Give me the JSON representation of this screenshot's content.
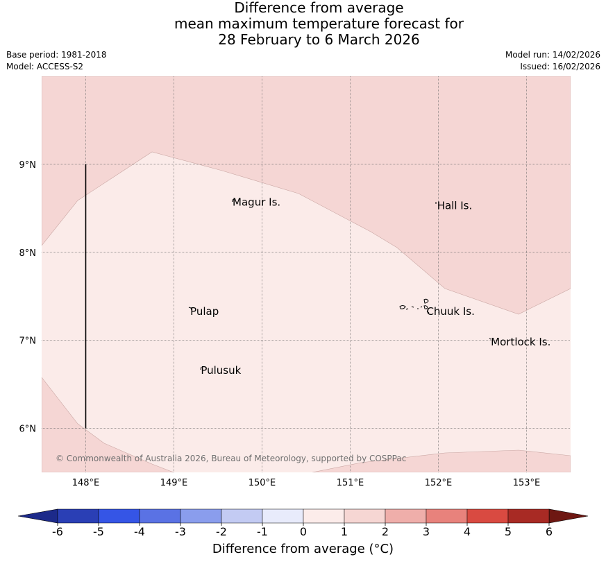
{
  "title": {
    "line1": "Difference from average",
    "line2": "mean maximum temperature forecast for",
    "line3": "28 February to 6 March 2026"
  },
  "meta": {
    "base_period": "Base period: 1981-2018",
    "model": "Model: ACCESS-S2",
    "model_run": "Model run: 14/02/2026",
    "issued": "Issued: 16/02/2026"
  },
  "map": {
    "lon_range": [
      147.5,
      153.5
    ],
    "lat_range": [
      5.5,
      10.0
    ],
    "lon_ticks": [
      148,
      149,
      150,
      151,
      152,
      153
    ],
    "lon_tick_labels": [
      "148°E",
      "149°E",
      "150°E",
      "151°E",
      "152°E",
      "153°E"
    ],
    "lat_ticks": [
      6,
      7,
      8,
      9
    ],
    "lat_tick_labels": [
      "6°N",
      "7°N",
      "8°N",
      "9°N"
    ],
    "grid": true,
    "colors": {
      "anomaly_0_1": "#fbebe9",
      "anomaly_1_2": "#f5d6d4",
      "boundary_line": "#000000"
    },
    "places": [
      {
        "name": "Magur Is.",
        "lon": 149.65,
        "lat": 8.57
      },
      {
        "name": "Hall Is.",
        "lon": 151.97,
        "lat": 8.53
      },
      {
        "name": "Pulap",
        "lon": 149.17,
        "lat": 7.33
      },
      {
        "name": "Chuuk Is.",
        "lon": 151.85,
        "lat": 7.33
      },
      {
        "name": "Pulusuk",
        "lon": 149.29,
        "lat": 6.66
      },
      {
        "name": "Mortlock Is.",
        "lon": 152.58,
        "lat": 6.98
      }
    ],
    "boundary_segment": {
      "lon": 148.0,
      "lat_from": 6.0,
      "lat_to": 9.0
    },
    "copyright": "© Commonwealth of Australia 2026, Bureau of Meteorology, supported by COSPPac"
  },
  "colorbar": {
    "ticks": [
      "-6",
      "-5",
      "-4",
      "-3",
      "-2",
      "-1",
      "0",
      "1",
      "2",
      "3",
      "4",
      "5",
      "6"
    ],
    "colors": [
      "#2a3fb5",
      "#3555e6",
      "#5a72e4",
      "#8a9ded",
      "#c3cbf3",
      "#e8ebfb",
      "#fcecea",
      "#f6d6d3",
      "#efaeaa",
      "#e8827c",
      "#d94a41",
      "#a82a24"
    ],
    "extend_low_color": "#1c2a8a",
    "extend_high_color": "#6e1712",
    "label": "Difference from average (°C)"
  }
}
